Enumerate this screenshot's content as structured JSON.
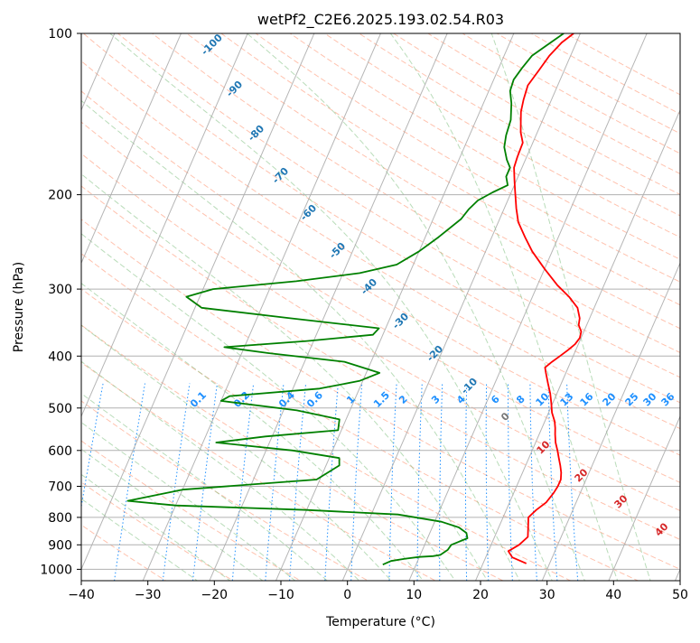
{
  "chart_data": {
    "type": "line",
    "title": "wetPf2_C2E6.2025.193.02.54.R03",
    "xlabel": "Temperature (°C)",
    "ylabel": "Pressure (hPa)",
    "xlim": [
      -40,
      50
    ],
    "ylim": [
      1050,
      100
    ],
    "y_scale": "log",
    "skew_per_decade_c": 35,
    "grid": true,
    "x_ticks": [
      -40,
      -30,
      -20,
      -10,
      0,
      10,
      20,
      30,
      40,
      50
    ],
    "y_ticks": [
      100,
      200,
      300,
      400,
      500,
      600,
      700,
      800,
      900,
      1000
    ],
    "colors": {
      "temperature": "#ff0000",
      "dewpoint": "#008000",
      "isotherm": "#a9a9a9",
      "dry_adiabat": "#ff9a78",
      "moist_adiabat": "#7fbf7f",
      "mixing_ratio": "#1e90ff",
      "label_isotherm": "#1f77b4",
      "label_cape": "#d62728"
    },
    "series": [
      {
        "color": "#ff0000",
        "points": [
          [
            26.5,
            975
          ],
          [
            24,
            950
          ],
          [
            23,
            925
          ],
          [
            24.2,
            900
          ],
          [
            25,
            870
          ],
          [
            24.5,
            840
          ],
          [
            23.8,
            800
          ],
          [
            24.5,
            775
          ],
          [
            25.5,
            750
          ],
          [
            26,
            720
          ],
          [
            26.2,
            700
          ],
          [
            26.2,
            680
          ],
          [
            25.8,
            660
          ],
          [
            25.2,
            640
          ],
          [
            24.5,
            620
          ],
          [
            23.8,
            600
          ],
          [
            23,
            580
          ],
          [
            22.4,
            560
          ],
          [
            22,
            545
          ],
          [
            21.5,
            530
          ],
          [
            20.5,
            510
          ],
          [
            19.8,
            490
          ],
          [
            19,
            470
          ],
          [
            18,
            450
          ],
          [
            17,
            430
          ],
          [
            16.5,
            420
          ],
          [
            17.2,
            410
          ],
          [
            18,
            400
          ],
          [
            18.8,
            390
          ],
          [
            19.5,
            380
          ],
          [
            19.8,
            370
          ],
          [
            19.6,
            360
          ],
          [
            18.8,
            350
          ],
          [
            18.5,
            340
          ],
          [
            17.5,
            325
          ],
          [
            15.5,
            310
          ],
          [
            13,
            295
          ],
          [
            10,
            275
          ],
          [
            7,
            255
          ],
          [
            5,
            240
          ],
          [
            3,
            225
          ],
          [
            1.8,
            212
          ],
          [
            0.5,
            197
          ],
          [
            -0.3,
            188
          ],
          [
            -1.2,
            178
          ],
          [
            -1.4,
            170
          ],
          [
            -1.5,
            160
          ],
          [
            -2.5,
            153
          ],
          [
            -3.2,
            146
          ],
          [
            -3.8,
            140
          ],
          [
            -4.2,
            133
          ],
          [
            -4.5,
            125
          ],
          [
            -3.8,
            117
          ],
          [
            -3.2,
            110
          ],
          [
            -2.2,
            104
          ],
          [
            -1.0,
            100
          ]
        ]
      },
      {
        "color": "#008000",
        "points": [
          [
            5,
            980
          ],
          [
            6,
            965
          ],
          [
            8,
            955
          ],
          [
            10,
            948
          ],
          [
            12,
            945
          ],
          [
            13,
            940
          ],
          [
            13.8,
            920
          ],
          [
            14,
            900
          ],
          [
            14.8,
            890
          ],
          [
            16,
            875
          ],
          [
            15.5,
            855
          ],
          [
            14,
            835
          ],
          [
            11,
            815
          ],
          [
            4,
            790
          ],
          [
            -10,
            775
          ],
          [
            -30,
            760
          ],
          [
            -37.5,
            745
          ],
          [
            -30,
            710
          ],
          [
            -10.5,
            680
          ],
          [
            -8,
            640
          ],
          [
            -8.5,
            620
          ],
          [
            -16,
            600
          ],
          [
            -28,
            580
          ],
          [
            -21,
            565
          ],
          [
            -10.5,
            550
          ],
          [
            -11,
            525
          ],
          [
            -18,
            505
          ],
          [
            -30,
            485
          ],
          [
            -29,
            475
          ],
          [
            -16,
            460
          ],
          [
            -10.5,
            445
          ],
          [
            -8,
            430
          ],
          [
            -14,
            410
          ],
          [
            -26,
            395
          ],
          [
            -33,
            385
          ],
          [
            -21,
            375
          ],
          [
            -11.5,
            365
          ],
          [
            -11,
            355
          ],
          [
            -25,
            340
          ],
          [
            -39,
            325
          ],
          [
            -42,
            310
          ],
          [
            -38.5,
            300
          ],
          [
            -26.5,
            290
          ],
          [
            -17.5,
            280
          ],
          [
            -12.5,
            270
          ],
          [
            -10,
            255
          ],
          [
            -8,
            240
          ],
          [
            -5.8,
            222
          ],
          [
            -5.3,
            213
          ],
          [
            -4.5,
            205
          ],
          [
            -2.8,
            198
          ],
          [
            -1.0,
            192
          ],
          [
            -1.8,
            185
          ],
          [
            -1.8,
            178
          ],
          [
            -2.8,
            172
          ],
          [
            -4,
            163
          ],
          [
            -4.5,
            155
          ],
          [
            -4.8,
            145
          ],
          [
            -5.8,
            135
          ],
          [
            -6.8,
            128
          ],
          [
            -7.0,
            122
          ],
          [
            -6.5,
            116
          ],
          [
            -5.8,
            110
          ],
          [
            -4.2,
            105
          ],
          [
            -2.5,
            100
          ]
        ]
      }
    ],
    "isotherm_labels": [
      "-100",
      "-90",
      "-80",
      "-70",
      "-60",
      "-50",
      "-40",
      "-30",
      "-20",
      "-10",
      "0"
    ],
    "mixing_ratio_labels": [
      "0.1",
      "0.2",
      "0.4",
      "0.6",
      "1",
      "1.5",
      "2",
      "3",
      "4",
      "6",
      "8",
      "10",
      "13",
      "16",
      "20",
      "25",
      "30",
      "36"
    ],
    "cape_labels": [
      "10",
      "20",
      "30",
      "40"
    ]
  }
}
